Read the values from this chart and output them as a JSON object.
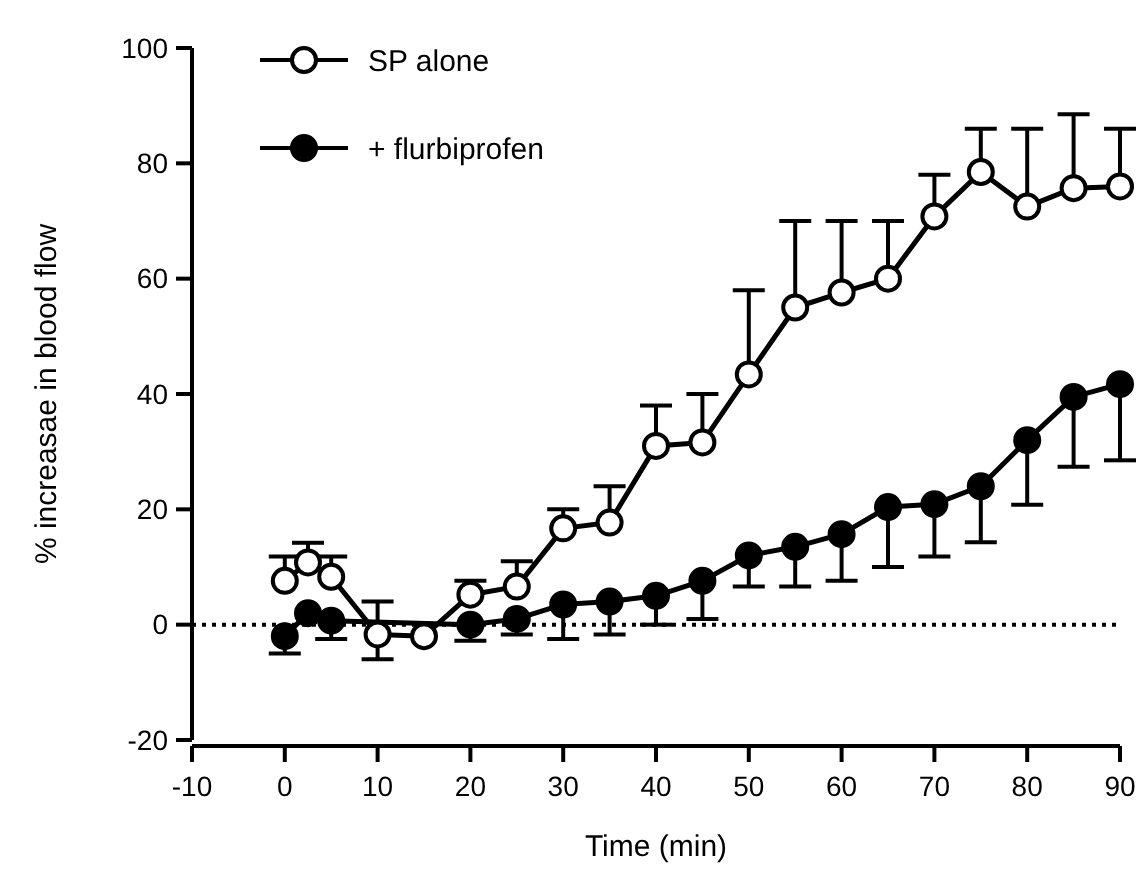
{
  "chart_data": {
    "type": "line",
    "xlabel": "Time (min)",
    "ylabel": "% increasae in blood flow",
    "xlim": [
      -10,
      90
    ],
    "ylim": [
      -20,
      100
    ],
    "xticks": [
      -10,
      0,
      10,
      20,
      30,
      40,
      50,
      60,
      70,
      80,
      90
    ],
    "yticks": [
      -20,
      0,
      20,
      40,
      60,
      80,
      100
    ],
    "marker": "circle",
    "legend": "top left",
    "ref_lines": [
      {
        "axis": "y",
        "value": 0,
        "line_style": "dotted",
        "color": "#000000"
      }
    ],
    "series": [
      {
        "name": "SP alone",
        "color": "#ffffff",
        "x": [
          0,
          2.5,
          5,
          10,
          15,
          20,
          25,
          30,
          35,
          40,
          45,
          50,
          55,
          60,
          65,
          70,
          75,
          80,
          85,
          90
        ],
        "values": [
          7.6,
          10.8,
          8.3,
          -1.7,
          -2,
          5.2,
          6.6,
          16.7,
          17.7,
          31,
          31.6,
          43.4,
          55,
          57.6,
          60,
          70.8,
          78.5,
          72.5,
          75.7,
          76
        ],
        "errors": [
          [
            7.6,
            11.8
          ],
          [
            10.8,
            14.2
          ],
          [
            8.3,
            11.8
          ],
          [
            -6,
            4
          ],
          null,
          [
            5.2,
            7.6
          ],
          [
            6.6,
            11
          ],
          [
            16.7,
            20
          ],
          [
            17.7,
            24
          ],
          [
            31,
            38
          ],
          [
            31.6,
            40
          ],
          [
            43.4,
            58
          ],
          [
            55,
            70
          ],
          [
            57.6,
            70
          ],
          [
            60,
            70
          ],
          [
            70.8,
            78
          ],
          [
            78.5,
            86
          ],
          [
            72.5,
            86
          ],
          [
            75.7,
            88.5
          ],
          [
            76,
            86
          ]
        ]
      },
      {
        "name": "+ flurbiprofen",
        "color": "#000000",
        "x": [
          0,
          2.5,
          5,
          10,
          15,
          20,
          25,
          30,
          35,
          40,
          45,
          50,
          55,
          60,
          65,
          70,
          75,
          80,
          85,
          90
        ],
        "values": [
          -2,
          2,
          0.7,
          null,
          null,
          0,
          1,
          3.5,
          4,
          5,
          7.6,
          12,
          13.5,
          15.7,
          20.4,
          20.9,
          24,
          32,
          39.5,
          41.7
        ],
        "errors": [
          [
            -5,
            -2
          ],
          null,
          [
            -2.5,
            0.7
          ],
          null,
          null,
          [
            -2.8,
            0
          ],
          [
            -1.7,
            1
          ],
          [
            -2.5,
            3.5
          ],
          [
            -1.7,
            4
          ],
          [
            0,
            5
          ],
          [
            1,
            7.6
          ],
          [
            6.6,
            12
          ],
          [
            6.6,
            13.5
          ],
          [
            7.6,
            15.7
          ],
          [
            10,
            20.4
          ],
          [
            11.8,
            20.9
          ],
          [
            14.3,
            24
          ],
          [
            20.8,
            32
          ],
          [
            27.4,
            39.5
          ],
          [
            28.5,
            41.7
          ]
        ]
      }
    ]
  }
}
